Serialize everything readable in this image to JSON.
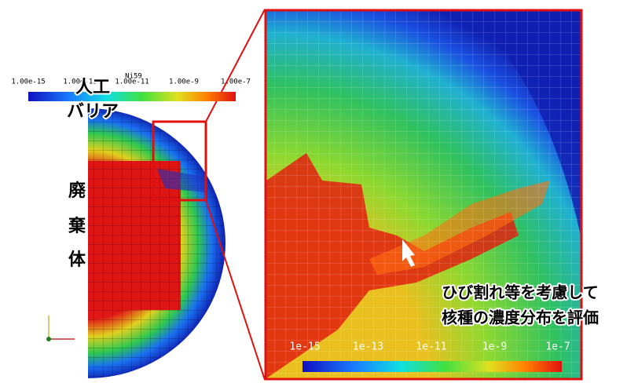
{
  "left_colorbar": {
    "title": "Ni59",
    "labels": [
      "1.00e-15",
      "1.00e-13",
      "1.00e-11",
      "1.00e-9",
      "1.00e-7"
    ]
  },
  "labels": {
    "barrier": [
      "人工",
      "バリア"
    ],
    "waste": [
      "廃",
      "棄",
      "体"
    ]
  },
  "callout": [
    "ひび割れ等を考慮して",
    "核種の濃度分布を評価"
  ],
  "right_colorbar": {
    "labels": [
      "1e-15",
      "1e-13",
      "1e-11",
      "1e-9",
      "1e-7"
    ]
  }
}
